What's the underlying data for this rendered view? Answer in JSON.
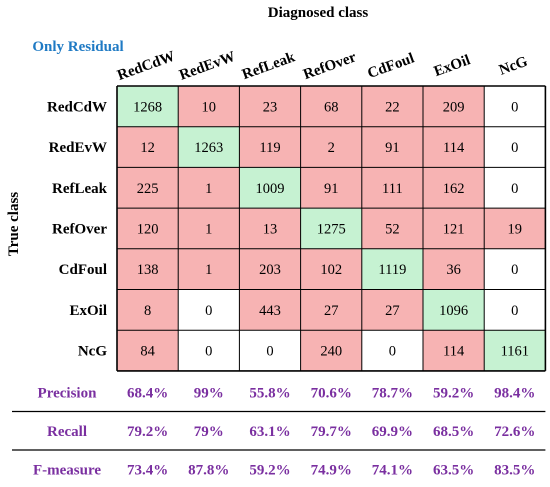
{
  "chart_data": {
    "type": "heatmap",
    "title": "Diagnosed class",
    "subtitle": "Only Residual",
    "xlabel": "Diagnosed class",
    "ylabel": "True class",
    "columns": [
      "RedCdW",
      "RedEvW",
      "RefLeak",
      "RefOver",
      "CdFoul",
      "ExOil",
      "NcG"
    ],
    "rows": [
      "RedCdW",
      "RedEvW",
      "RefLeak",
      "RefOver",
      "CdFoul",
      "ExOil",
      "NcG"
    ],
    "matrix": [
      [
        1268,
        10,
        23,
        68,
        22,
        209,
        0
      ],
      [
        12,
        1263,
        119,
        2,
        91,
        114,
        0
      ],
      [
        225,
        1,
        1009,
        91,
        111,
        162,
        0
      ],
      [
        120,
        1,
        13,
        1275,
        52,
        121,
        19
      ],
      [
        138,
        1,
        203,
        102,
        1119,
        36,
        0
      ],
      [
        8,
        0,
        443,
        27,
        27,
        1096,
        0
      ],
      [
        84,
        0,
        0,
        240,
        0,
        114,
        1161
      ]
    ],
    "metrics": [
      {
        "label": "Precision",
        "values": [
          "68.4%",
          "99%",
          "55.8%",
          "70.6%",
          "78.7%",
          "59.2%",
          "98.4%"
        ]
      },
      {
        "label": "Recall",
        "values": [
          "79.2%",
          "79%",
          "63.1%",
          "79.7%",
          "69.9%",
          "68.5%",
          "72.6%"
        ]
      },
      {
        "label": "F-measure",
        "values": [
          "73.4%",
          "87.8%",
          "59.2%",
          "74.9%",
          "74.1%",
          "63.5%",
          "83.5%"
        ]
      }
    ],
    "colors": {
      "diagonal": "#c6f2d2",
      "nonzero": "#f7b3b3",
      "zero": "#ffffff",
      "subtitle": "#1f7ac4",
      "metrics": "#7a2fa0"
    },
    "grid": true,
    "legend": "none"
  }
}
